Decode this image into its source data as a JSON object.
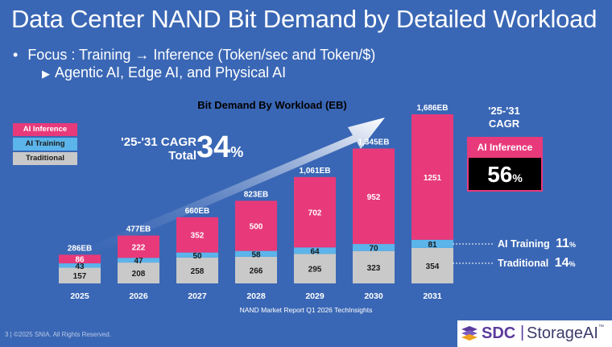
{
  "slide": {
    "title": "Data Center NAND Bit Demand by Detailed Workload",
    "bullet1": "Focus :  Training → Inference (Token/sec and Token/$)",
    "bullet2": "Agentic AI, Edge AI, and Physical AI",
    "bullet1_marker": "•",
    "bullet2_marker": "▶",
    "source": "NAND Market Report Q1 2026   TechInsights",
    "footer": "3 | ©2025 SNIA. All Rights Reserved.",
    "logo": {
      "sdc": "SDC",
      "sep": "|",
      "storage": "StorageAI",
      "tm": "™"
    }
  },
  "legend": [
    {
      "label": "AI Inference",
      "color": "#e83a7a",
      "text_color": "#ffffff"
    },
    {
      "label": "AI Training",
      "color": "#5bb4ea",
      "text_color": "#1a1a1a"
    },
    {
      "label": "Traditional",
      "color": "#c9c9c9",
      "text_color": "#1a1a1a"
    }
  ],
  "cagr_total": {
    "line1": "'25-'31 CAGR",
    "line2": "Total",
    "value": "34",
    "pct": "%"
  },
  "right_panel": {
    "cagr_heading_line1": "'25-'31",
    "cagr_heading_line2": "CAGR",
    "inference_label": "AI Inference",
    "inference_value": "56",
    "training_label": "AI Training",
    "training_value": "11",
    "traditional_label": "Traditional",
    "traditional_value": "14",
    "pct": "%"
  },
  "chart_data": {
    "type": "bar",
    "stacked": true,
    "title": "Bit Demand By Workload (EB)",
    "categories": [
      "2025",
      "2026",
      "2027",
      "2028",
      "2029",
      "2030",
      "2031"
    ],
    "series": [
      {
        "name": "Traditional",
        "color": "#c9c9c9",
        "values": [
          157,
          208,
          258,
          266,
          295,
          323,
          354
        ]
      },
      {
        "name": "AI Training",
        "color": "#5bb4ea",
        "values": [
          43,
          47,
          50,
          58,
          64,
          70,
          81
        ]
      },
      {
        "name": "AI Inference",
        "color": "#e83a7a",
        "values": [
          86,
          222,
          352,
          500,
          702,
          952,
          1251
        ]
      }
    ],
    "totals": [
      "286EB",
      "477EB",
      "660EB",
      "823EB",
      "1,061EB",
      "1,345EB",
      "1,686EB"
    ],
    "legend_position": "left"
  }
}
